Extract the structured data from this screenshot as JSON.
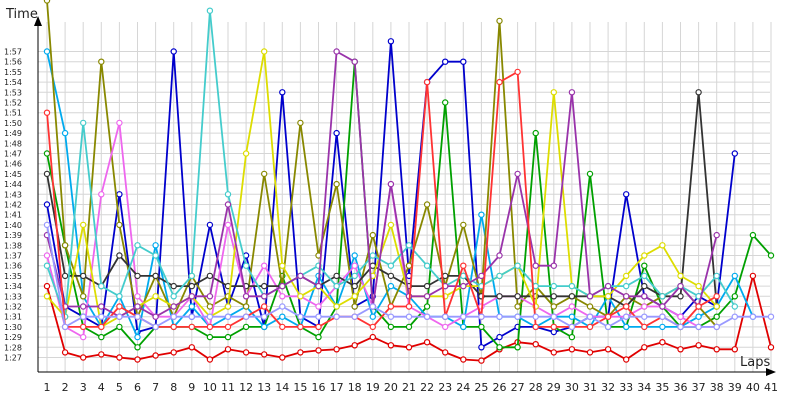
{
  "chart_data": {
    "type": "line",
    "title": "",
    "ylabel": "Time",
    "xlabel": "Laps",
    "x": [
      1,
      2,
      3,
      4,
      5,
      6,
      7,
      8,
      9,
      10,
      11,
      12,
      13,
      14,
      15,
      16,
      17,
      18,
      19,
      20,
      21,
      22,
      23,
      24,
      25,
      26,
      27,
      28,
      29,
      30,
      31,
      32,
      33,
      34,
      35,
      36,
      37,
      38,
      39,
      40,
      41
    ],
    "y_tick_labels": [
      "1:27",
      "1:28",
      "1:29",
      "1:30",
      "1:31",
      "1:32",
      "1:33",
      "1:34",
      "1:35",
      "1:36",
      "1:37",
      "1:38",
      "1:39",
      "1:40",
      "1:41",
      "1:42",
      "1:43",
      "1:44",
      "1:45",
      "1:46",
      "1:47",
      "1:48",
      "1:49",
      "1:50",
      "1:51",
      "1:52",
      "1:53",
      "1:54",
      "1:55",
      "1:56",
      "1:57"
    ],
    "ylim_seconds": [
      86,
      118
    ],
    "y_unit": "m:ss",
    "grid": true,
    "series": [
      {
        "color": "#e00000",
        "values": [
          94,
          87.5,
          87,
          87.3,
          87,
          86.8,
          87.2,
          87.5,
          88,
          86.8,
          87.8,
          87.5,
          87.3,
          87,
          87.5,
          87.7,
          87.8,
          88.2,
          89,
          88.2,
          88,
          88.5,
          87.5,
          86.8,
          86.7,
          87.8,
          88.5,
          88.3,
          87.5,
          87.8,
          87.5,
          87.8,
          86.8,
          88,
          88.5,
          87.8,
          88.2,
          87.8,
          87.8,
          95,
          88
        ]
      },
      {
        "color": "#0000cc",
        "values": [
          102,
          92,
          91,
          90,
          103,
          89.5,
          90,
          117,
          91,
          100,
          92,
          97,
          90,
          113,
          91,
          90,
          109,
          92,
          93,
          118,
          95,
          114,
          116,
          116,
          88,
          89,
          90,
          90,
          89.5,
          90,
          91,
          91,
          103,
          93,
          92,
          91,
          93,
          92,
          107,
          null,
          null
        ]
      },
      {
        "color": "#00a000",
        "values": [
          107,
          98,
          90,
          89,
          90,
          88,
          90,
          90,
          90,
          89,
          89,
          90,
          90,
          95,
          90,
          89,
          92,
          116,
          92,
          90,
          90,
          92,
          112,
          90,
          90,
          88,
          88,
          109,
          90,
          89,
          105,
          90,
          90,
          96,
          92,
          90,
          90,
          91,
          93,
          99,
          97
        ]
      },
      {
        "color": "#00aaee",
        "values": [
          117,
          109,
          93,
          90,
          93,
          89,
          98,
          90,
          92,
          90,
          91,
          92,
          90,
          91,
          90,
          95,
          92,
          97,
          91,
          94,
          93,
          91,
          91,
          90,
          101,
          91,
          91,
          90,
          91,
          91,
          90,
          93,
          90,
          90,
          90,
          90,
          91,
          92,
          95,
          91,
          null
        ]
      },
      {
        "color": "#888800",
        "values": [
          122,
          98,
          93,
          116,
          100,
          91,
          95,
          91,
          95,
          92,
          93,
          92,
          105,
          94,
          110,
          97,
          104,
          92,
          99,
          92,
          96,
          102,
          94,
          100,
          93,
          120,
          92,
          94,
          92,
          93,
          92,
          91,
          93,
          92,
          93,
          94,
          92,
          90,
          null,
          null,
          null
        ]
      },
      {
        "color": "#ee66ee",
        "values": [
          97,
          90,
          89,
          103,
          110,
          93,
          91,
          91,
          93,
          90,
          100,
          93,
          96,
          93,
          93,
          92,
          94,
          96,
          92,
          104,
          92,
          91,
          90,
          91,
          92,
          93,
          93,
          92,
          91,
          92,
          91,
          91,
          91,
          92,
          92,
          91,
          90,
          90,
          null,
          null,
          null
        ]
      },
      {
        "color": "#333333",
        "values": [
          105,
          95,
          95,
          94,
          97,
          95,
          95,
          94,
          94,
          95,
          94,
          94,
          94,
          94,
          95,
          94,
          95,
          94,
          96,
          95,
          94,
          94,
          95,
          95,
          93,
          93,
          93,
          93,
          93,
          93,
          93,
          93,
          92,
          94,
          93,
          93,
          113,
          92,
          null,
          null,
          null
        ]
      },
      {
        "color": "#dddd00",
        "values": [
          93,
          91,
          100,
          90,
          91,
          92,
          93,
          92,
          93,
          91,
          92,
          107,
          117,
          96,
          93,
          94,
          92,
          93,
          95,
          100,
          93,
          93,
          93,
          94,
          94,
          95,
          96,
          92,
          113,
          94,
          93,
          93,
          95,
          97,
          98,
          95,
          94,
          92,
          null,
          null,
          null
        ]
      },
      {
        "color": "#44cccc",
        "values": [
          96,
          91,
          110,
          94,
          93,
          98,
          97,
          93,
          95,
          121,
          103,
          96,
          93,
          94,
          95,
          96,
          94,
          95,
          97,
          96,
          98,
          96,
          94,
          95,
          94,
          95,
          96,
          94,
          94,
          94,
          93,
          94,
          94,
          95,
          93,
          94,
          93,
          95,
          92,
          null,
          null
        ]
      },
      {
        "color": "#9933aa",
        "values": [
          99,
          92,
          92,
          92,
          91,
          92,
          91,
          92,
          93,
          93,
          102,
          93,
          93,
          94,
          95,
          94,
          117,
          116,
          92,
          104,
          93,
          93,
          94,
          94,
          95,
          97,
          105,
          96,
          96,
          113,
          93,
          94,
          93,
          93,
          92,
          94,
          92,
          99,
          null,
          null,
          null
        ]
      },
      {
        "color": "#ff3333",
        "values": [
          111,
          90,
          90,
          90,
          92,
          91,
          90,
          90,
          90,
          90,
          90,
          91,
          92,
          90,
          90,
          90,
          91,
          91,
          90,
          92,
          92,
          114,
          91,
          96,
          91,
          114,
          115,
          90,
          90,
          90,
          90,
          91,
          92,
          90,
          91,
          90,
          92,
          93,
          null,
          null,
          null
        ]
      },
      {
        "color": "#9999ff",
        "values": [
          100,
          90,
          91,
          91,
          91,
          91,
          90,
          91,
          91,
          91,
          91,
          91,
          91,
          92,
          91,
          91,
          91,
          91,
          92,
          91,
          91,
          91,
          91,
          91,
          91,
          91,
          91,
          91,
          91,
          90,
          91,
          90,
          91,
          91,
          91,
          90,
          90,
          90,
          91,
          91,
          91
        ]
      }
    ]
  }
}
